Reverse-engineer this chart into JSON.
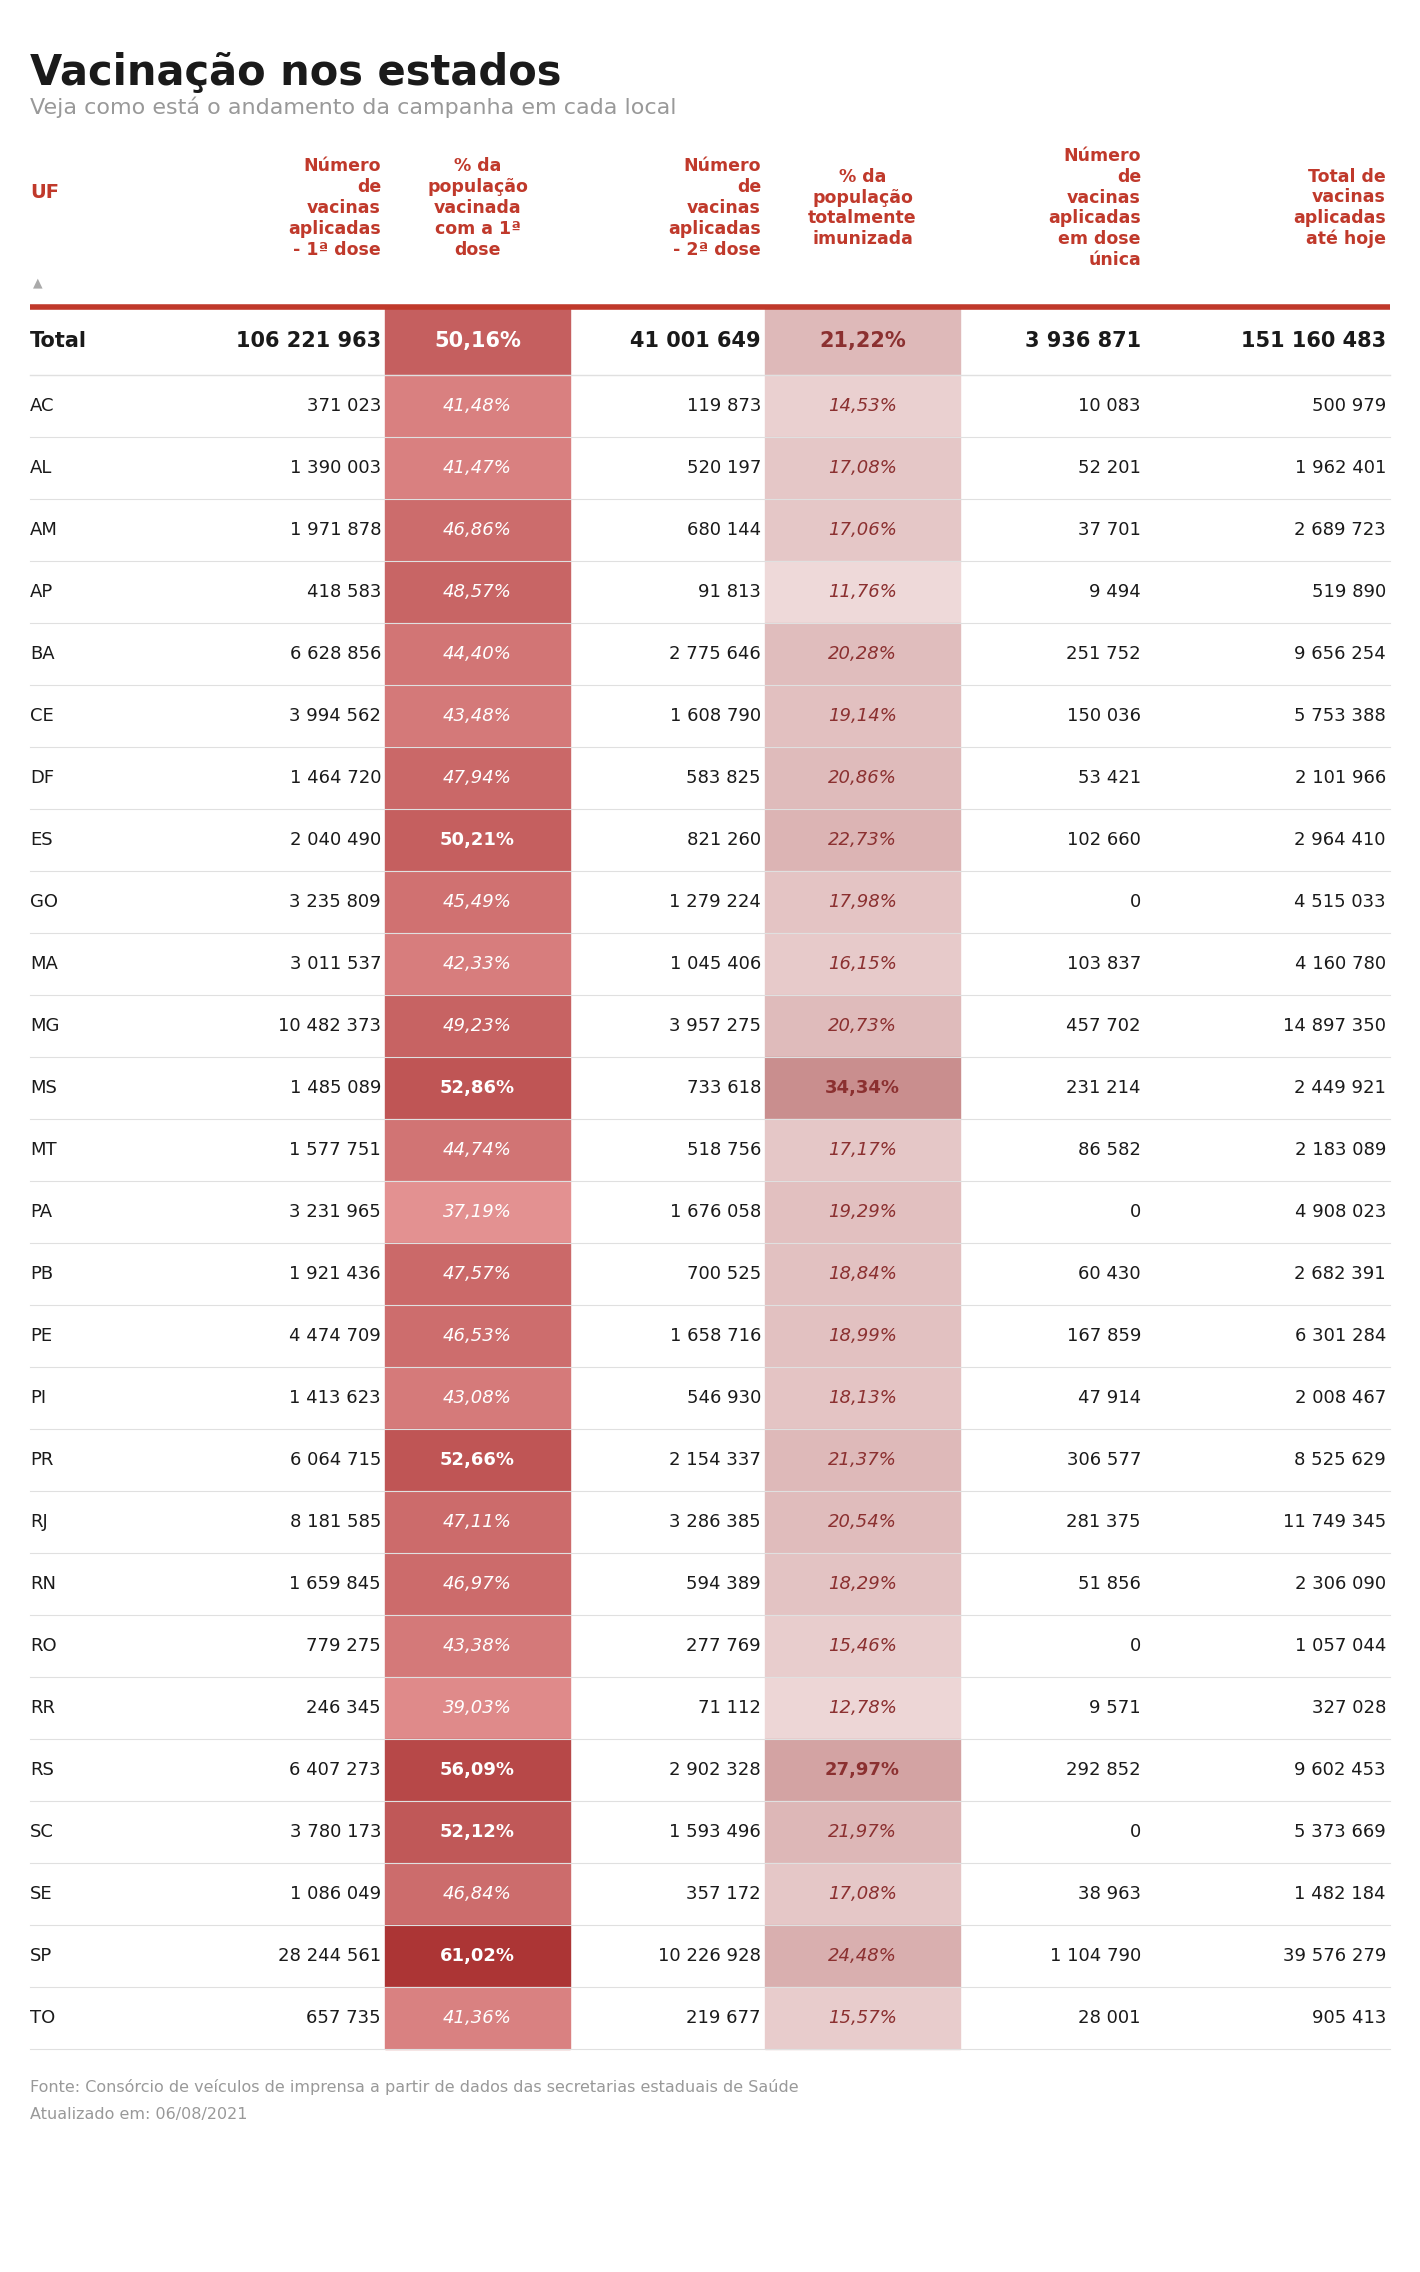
{
  "title": "Vacinação nos estados",
  "subtitle": "Veja como está o andamento da campanha em cada local",
  "footer_line1": "Fonte: Consórcio de veículos de imprensa a partir de dados das secretarias estaduais de Saúde",
  "footer_line2": "Atualizado em: 06/08/2021",
  "col_headers": [
    "UF",
    "Número\nde\nvacinas\naplicadas\n- 1ª dose",
    "% da\npopulação\nvacinada\ncom a 1ª\ndose",
    "Número\nde\nvacinas\naplicadas\n- 2ª dose",
    "% da\npopulação\ntotalmente\nimunizada",
    "Número\nde\nvacinas\naplicadas\nem dose\núnica",
    "Total de\nvacinas\naplicadas\naté hoje"
  ],
  "total_row": [
    "Total",
    "106 221 963",
    "50,16%",
    "41 001 649",
    "21,22%",
    "3 936 871",
    "151 160 483"
  ],
  "rows": [
    [
      "AC",
      "371 023",
      "41,48%",
      "119 873",
      "14,53%",
      "10 083",
      "500 979"
    ],
    [
      "AL",
      "1 390 003",
      "41,47%",
      "520 197",
      "17,08%",
      "52 201",
      "1 962 401"
    ],
    [
      "AM",
      "1 971 878",
      "46,86%",
      "680 144",
      "17,06%",
      "37 701",
      "2 689 723"
    ],
    [
      "AP",
      "418 583",
      "48,57%",
      "91 813",
      "11,76%",
      "9 494",
      "519 890"
    ],
    [
      "BA",
      "6 628 856",
      "44,40%",
      "2 775 646",
      "20,28%",
      "251 752",
      "9 656 254"
    ],
    [
      "CE",
      "3 994 562",
      "43,48%",
      "1 608 790",
      "19,14%",
      "150 036",
      "5 753 388"
    ],
    [
      "DF",
      "1 464 720",
      "47,94%",
      "583 825",
      "20,86%",
      "53 421",
      "2 101 966"
    ],
    [
      "ES",
      "2 040 490",
      "50,21%",
      "821 260",
      "22,73%",
      "102 660",
      "2 964 410"
    ],
    [
      "GO",
      "3 235 809",
      "45,49%",
      "1 279 224",
      "17,98%",
      "0",
      "4 515 033"
    ],
    [
      "MA",
      "3 011 537",
      "42,33%",
      "1 045 406",
      "16,15%",
      "103 837",
      "4 160 780"
    ],
    [
      "MG",
      "10 482 373",
      "49,23%",
      "3 957 275",
      "20,73%",
      "457 702",
      "14 897 350"
    ],
    [
      "MS",
      "1 485 089",
      "52,86%",
      "733 618",
      "34,34%",
      "231 214",
      "2 449 921"
    ],
    [
      "MT",
      "1 577 751",
      "44,74%",
      "518 756",
      "17,17%",
      "86 582",
      "2 183 089"
    ],
    [
      "PA",
      "3 231 965",
      "37,19%",
      "1 676 058",
      "19,29%",
      "0",
      "4 908 023"
    ],
    [
      "PB",
      "1 921 436",
      "47,57%",
      "700 525",
      "18,84%",
      "60 430",
      "2 682 391"
    ],
    [
      "PE",
      "4 474 709",
      "46,53%",
      "1 658 716",
      "18,99%",
      "167 859",
      "6 301 284"
    ],
    [
      "PI",
      "1 413 623",
      "43,08%",
      "546 930",
      "18,13%",
      "47 914",
      "2 008 467"
    ],
    [
      "PR",
      "6 064 715",
      "52,66%",
      "2 154 337",
      "21,37%",
      "306 577",
      "8 525 629"
    ],
    [
      "RJ",
      "8 181 585",
      "47,11%",
      "3 286 385",
      "20,54%",
      "281 375",
      "11 749 345"
    ],
    [
      "RN",
      "1 659 845",
      "46,97%",
      "594 389",
      "18,29%",
      "51 856",
      "2 306 090"
    ],
    [
      "RO",
      "779 275",
      "43,38%",
      "277 769",
      "15,46%",
      "0",
      "1 057 044"
    ],
    [
      "RR",
      "246 345",
      "39,03%",
      "71 112",
      "12,78%",
      "9 571",
      "327 028"
    ],
    [
      "RS",
      "6 407 273",
      "56,09%",
      "2 902 328",
      "27,97%",
      "292 852",
      "9 602 453"
    ],
    [
      "SC",
      "3 780 173",
      "52,12%",
      "1 593 496",
      "21,97%",
      "0",
      "5 373 669"
    ],
    [
      "SE",
      "1 086 049",
      "46,84%",
      "357 172",
      "17,08%",
      "38 963",
      "1 482 184"
    ],
    [
      "SP",
      "28 244 561",
      "61,02%",
      "10 226 928",
      "24,48%",
      "1 104 790",
      "39 576 279"
    ],
    [
      "TO",
      "657 735",
      "41,36%",
      "219 677",
      "15,57%",
      "28 001",
      "905 413"
    ]
  ],
  "col1_pct_values": [
    41.48,
    41.47,
    46.86,
    48.57,
    44.4,
    43.48,
    47.94,
    50.21,
    45.49,
    42.33,
    49.23,
    52.86,
    44.74,
    37.19,
    47.57,
    46.53,
    43.08,
    52.66,
    47.11,
    46.97,
    43.38,
    39.03,
    56.09,
    52.12,
    46.84,
    61.02,
    41.36
  ],
  "col3_pct_values": [
    14.53,
    17.08,
    17.06,
    11.76,
    20.28,
    19.14,
    20.86,
    22.73,
    17.98,
    16.15,
    20.73,
    34.34,
    17.17,
    19.29,
    18.84,
    18.99,
    18.13,
    21.37,
    20.54,
    18.29,
    15.46,
    12.78,
    27.97,
    21.97,
    17.08,
    24.48,
    15.57
  ],
  "total_pct1": 50.16,
  "total_pct3": 21.22,
  "bg_color": "#ffffff",
  "header_color": "#c0392b",
  "row_separator_color": "#e0e0e0",
  "thick_separator_color": "#c0392b",
  "title_color": "#1a1a1a",
  "subtitle_color": "#999999",
  "footer_color": "#999999"
}
